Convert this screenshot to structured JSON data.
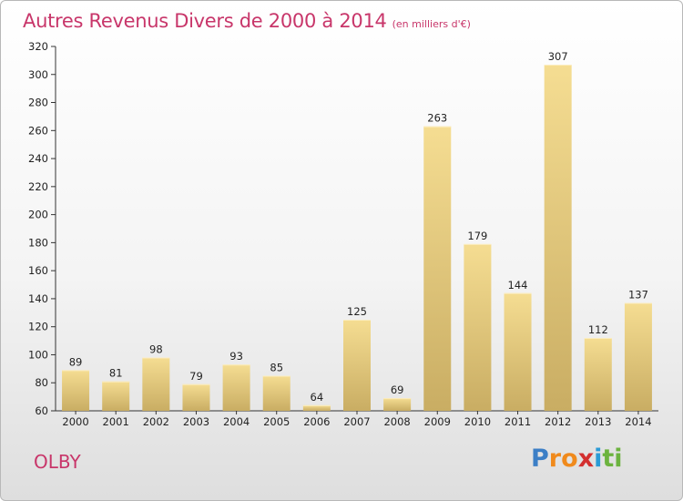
{
  "title": "Autres Revenus Divers de 2000 à 2014",
  "subtitle": "(en milliers d'€)",
  "town": "OLBY",
  "logo": {
    "text": "Proxiti"
  },
  "colors": {
    "title": "#c8366a",
    "bar_light": "#f5dd92",
    "bar_dark": "#c9ad63"
  },
  "chart_data": {
    "type": "bar",
    "title": "Autres Revenus Divers de 2000 à 2014",
    "subtitle": "(en milliers d'€)",
    "categories": [
      "2000",
      "2001",
      "2002",
      "2003",
      "2004",
      "2005",
      "2006",
      "2007",
      "2008",
      "2009",
      "2010",
      "2011",
      "2012",
      "2013",
      "2014"
    ],
    "values": [
      89,
      81,
      98,
      79,
      93,
      85,
      64,
      125,
      69,
      263,
      179,
      144,
      307,
      112,
      137
    ],
    "ylim": [
      60,
      320
    ],
    "yticks": [
      60,
      80,
      100,
      120,
      140,
      160,
      180,
      200,
      220,
      240,
      260,
      280,
      300,
      320
    ],
    "grid": false,
    "legend": "none"
  }
}
